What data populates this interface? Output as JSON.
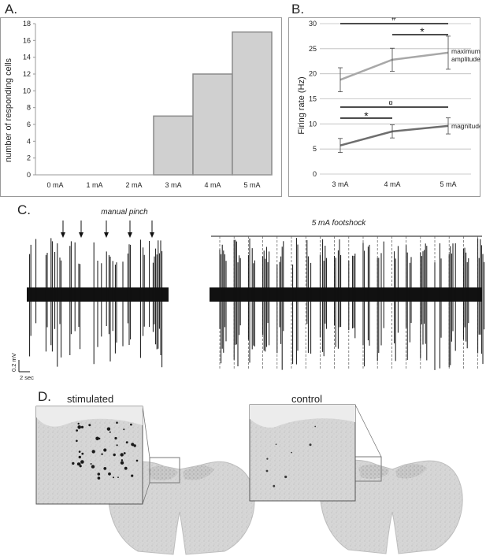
{
  "panels": {
    "a": {
      "letter": "A.",
      "ylabel": "number of responding cells",
      "yticks": [
        "0",
        "2",
        "4",
        "6",
        "8",
        "10",
        "12",
        "14",
        "16",
        "18"
      ]
    },
    "b": {
      "letter": "B.",
      "ylabel": "Firing rate (Hz)",
      "yticks": [
        "0",
        "5",
        "10",
        "15",
        "20",
        "25",
        "30"
      ],
      "annot_hash": "#",
      "annot_star_top": "*",
      "annot_currency": "¤",
      "annot_star_bottom": "*",
      "label_max_1": "maximum",
      "label_max_2": "amplitude",
      "label_mag": "magnitude"
    },
    "c": {
      "letter": "C.",
      "pinch_label": "manual pinch",
      "shock_label": "5 mA footshock",
      "scale_v": "0.2 mV",
      "scale_t": "2 sec"
    },
    "d": {
      "letter": "D.",
      "stim_label": "stimulated",
      "ctrl_label": "control"
    }
  },
  "chart_data": [
    {
      "type": "bar",
      "categories": [
        "0 mA",
        "1 mA",
        "2 mA",
        "3 mA",
        "4 mA",
        "5 mA"
      ],
      "values": [
        0,
        0,
        0,
        7,
        12,
        17
      ],
      "title": "",
      "xlabel": "",
      "ylabel": "number of responding cells",
      "ylim": [
        0,
        18
      ],
      "grid": false,
      "bar_color": "#d0d0d0"
    },
    {
      "type": "line",
      "categories": [
        "3 mA",
        "4 mA",
        "5 mA"
      ],
      "series": [
        {
          "name": "maximum amplitude",
          "values": [
            18.8,
            22.8,
            24.2
          ],
          "errors": [
            2.4,
            2.3,
            3.3
          ],
          "color": "#a8a8a8"
        },
        {
          "name": "magnitude",
          "values": [
            5.7,
            8.5,
            9.6
          ],
          "errors": [
            1.4,
            1.3,
            1.6
          ],
          "color": "#6e6e6e"
        }
      ],
      "title": "",
      "ylabel": "Firing rate (Hz)",
      "ylim": [
        0,
        30
      ],
      "grid": true
    }
  ]
}
